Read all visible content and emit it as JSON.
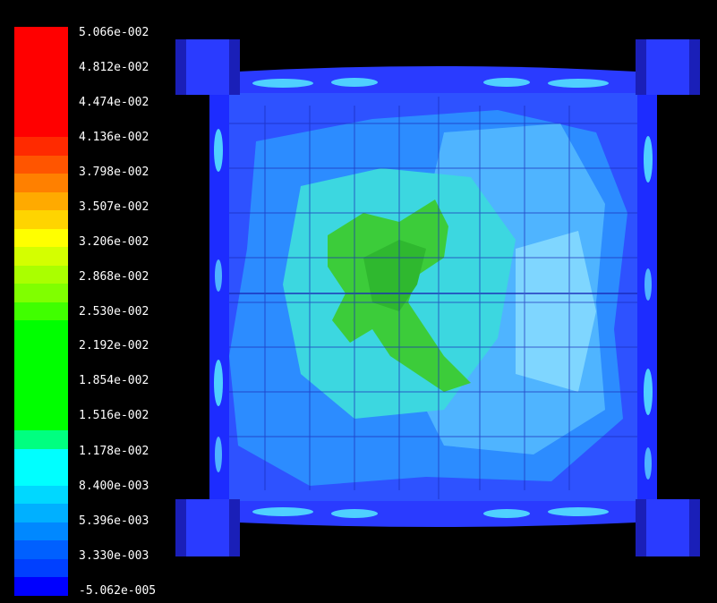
{
  "legend": {
    "labels": [
      "5.066e-002",
      "4.812e-002",
      "4.474e-002",
      "4.136e-002",
      "3.798e-002",
      "3.507e-002",
      "3.206e-002",
      "2.868e-002",
      "2.530e-002",
      "2.192e-002",
      "1.854e-002",
      "1.516e-002",
      "1.178e-002",
      "8.400e-003",
      "5.396e-003",
      "3.330e-003",
      "-5.062e-005"
    ],
    "colors": [
      "#ff0000",
      "#ff0000",
      "#ff0000",
      "#ff0000",
      "#ff0000",
      "#ff0000",
      "#ff2a00",
      "#ff5500",
      "#ff8000",
      "#ffaa00",
      "#ffd400",
      "#ffff00",
      "#d4ff00",
      "#aaff00",
      "#80ff00",
      "#40ff00",
      "#00ff00",
      "#00ff00",
      "#00ff00",
      "#00ff00",
      "#00ff00",
      "#00ff00",
      "#00ff80",
      "#00ffff",
      "#00ffff",
      "#00d8ff",
      "#00b0ff",
      "#0088ff",
      "#0060ff",
      "#0040ff",
      "#0000ff"
    ]
  },
  "contour": {
    "background": "#000000",
    "plate_fill": "#2e52ff",
    "mid_fill": "#4fb4ff",
    "high_fill": "#3cd7e0",
    "peak_fill": "#3ccc3a",
    "edge_fill": "#1d2cff",
    "column_fill": "#2a3bff"
  }
}
